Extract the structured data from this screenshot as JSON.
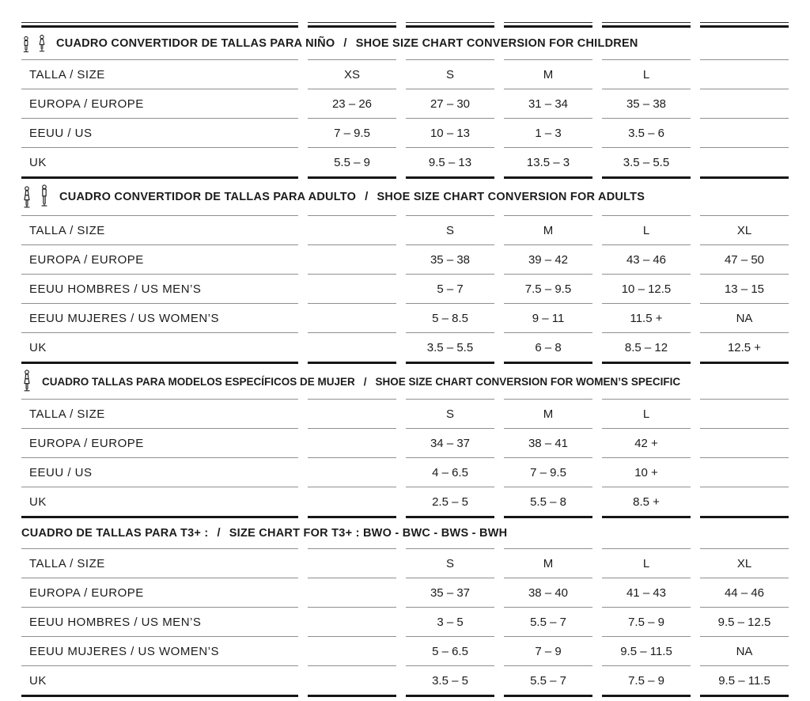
{
  "colors": {
    "background": "#ffffff",
    "text": "#1c1c1c",
    "thick_line": "#161616",
    "thin_line": "#8f8f8f"
  },
  "sections": [
    {
      "id": "children",
      "icons": [
        "boy-child-icon",
        "girl-child-icon"
      ],
      "title_es": "CUADRO CONVERTIDOR DE TALLAS PARA NIÑO",
      "slash": "/",
      "title_en": "SHOE SIZE CHART CONVERSION FOR CHILDREN",
      "rows": [
        {
          "label": "TALLA / SIZE",
          "cells": [
            "XS",
            "S",
            "M",
            "L",
            ""
          ]
        },
        {
          "label": "EUROPA / EUROPE",
          "cells": [
            "23 – 26",
            "27 – 30",
            "31 – 34",
            "35 – 38",
            ""
          ]
        },
        {
          "label": "EEUU / US",
          "cells": [
            "7 – 9.5",
            "10 – 13",
            "1 – 3",
            "3.5 – 6",
            ""
          ]
        },
        {
          "label": "UK",
          "cells": [
            "5.5 – 9",
            "9.5 – 13",
            "13.5 – 3",
            "3.5 – 5.5",
            ""
          ]
        }
      ]
    },
    {
      "id": "adults",
      "icons": [
        "woman-adult-icon",
        "man-adult-icon"
      ],
      "title_es": "CUADRO CONVERTIDOR DE TALLAS PARA ADULTO",
      "slash": "/",
      "title_en": "SHOE SIZE CHART CONVERSION FOR ADULTS",
      "rows": [
        {
          "label": "TALLA / SIZE",
          "cells": [
            "",
            "S",
            "M",
            "L",
            "XL"
          ]
        },
        {
          "label": "EUROPA / EUROPE",
          "cells": [
            "",
            "35 – 38",
            "39 – 42",
            "43 – 46",
            "47 – 50"
          ]
        },
        {
          "label": "EEUU HOMBRES / US MEN’S",
          "cells": [
            "",
            "5 – 7",
            "7.5 – 9.5",
            "10 – 12.5",
            "13 – 15"
          ]
        },
        {
          "label": "EEUU MUJERES / US WOMEN’S",
          "cells": [
            "",
            "5 – 8.5",
            "9 – 11",
            "11.5 +",
            "NA"
          ]
        },
        {
          "label": "UK",
          "cells": [
            "",
            "3.5 – 5.5",
            "6 – 8",
            "8.5 – 12",
            "12.5 +"
          ]
        }
      ]
    },
    {
      "id": "women-specific",
      "icons": [
        "woman-adult-icon"
      ],
      "title_es": "CUADRO TALLAS PARA MODELOS ESPECÍFICOS DE MUJER",
      "slash": "/",
      "title_en": "SHOE SIZE CHART CONVERSION FOR WOMEN’S SPECIFIC",
      "rows": [
        {
          "label": "TALLA / SIZE",
          "cells": [
            "",
            "S",
            "M",
            "L",
            ""
          ]
        },
        {
          "label": "EUROPA / EUROPE",
          "cells": [
            "",
            "34 – 37",
            "38 – 41",
            "42 +",
            ""
          ]
        },
        {
          "label": "EEUU / US",
          "cells": [
            "",
            "4 – 6.5",
            "7 – 9.5",
            "10 +",
            ""
          ]
        },
        {
          "label": "UK",
          "cells": [
            "",
            "2.5 – 5",
            "5.5 – 8",
            "8.5 +",
            ""
          ]
        }
      ]
    },
    {
      "id": "t3-plus",
      "icons": [],
      "title_es": "CUADRO DE TALLAS PARA T3+ :",
      "slash": "/",
      "title_en": "SIZE CHART FOR T3+ :  BWO - BWC - BWS - BWH",
      "rows": [
        {
          "label": "TALLA / SIZE",
          "cells": [
            "",
            "S",
            "M",
            "L",
            "XL"
          ]
        },
        {
          "label": "EUROPA / EUROPE",
          "cells": [
            "",
            "35 – 37",
            "38 – 40",
            "41 – 43",
            "44 – 46"
          ]
        },
        {
          "label": "EEUU HOMBRES / US MEN’S",
          "cells": [
            "",
            "3 – 5",
            "5.5 – 7",
            "7.5 – 9",
            "9.5 – 12.5"
          ]
        },
        {
          "label": "EEUU MUJERES / US WOMEN’S",
          "cells": [
            "",
            "5 – 6.5",
            "7 – 9",
            "9.5 – 11.5",
            "NA"
          ]
        },
        {
          "label": "UK",
          "cells": [
            "",
            "3.5 – 5",
            "5.5 – 7",
            "7.5 – 9",
            "9.5 – 11.5"
          ]
        }
      ]
    }
  ]
}
